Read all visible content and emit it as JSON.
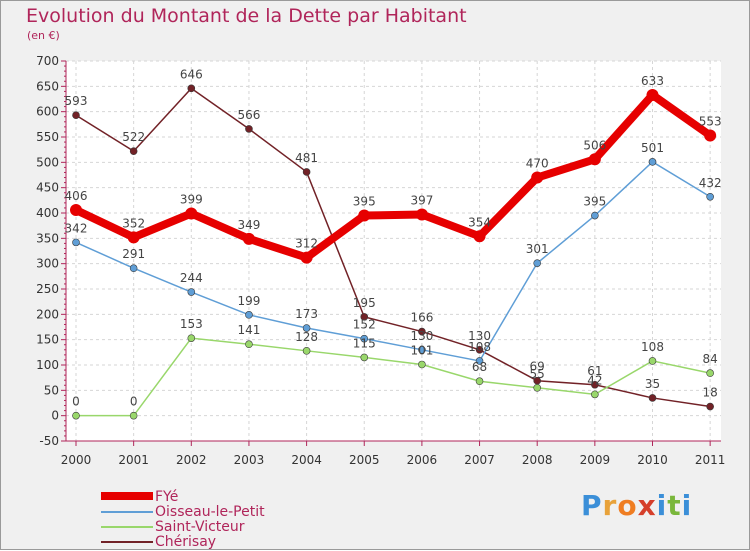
{
  "header": {
    "title": "Evolution du Montant de la Dette par Habitant",
    "unit": "(en €)"
  },
  "brand": {
    "letters": [
      "P",
      "r",
      "o",
      "x",
      "i",
      "t",
      "i"
    ],
    "colors": [
      "#3b8fd8",
      "#e8a23a",
      "#ef7d22",
      "#d53f2b",
      "#3b8fd8",
      "#7ab73b",
      "#3b8fd8"
    ]
  },
  "chart_data": {
    "type": "line",
    "title": "Evolution du Montant de la Dette par Habitant",
    "ylabel": "(en €)",
    "xlabel": "",
    "x": [
      "2000",
      "2001",
      "2002",
      "2003",
      "2004",
      "2005",
      "2006",
      "2007",
      "2008",
      "2009",
      "2010",
      "2011"
    ],
    "ylim": [
      -50,
      700
    ],
    "yticks": [
      -50,
      0,
      50,
      100,
      150,
      200,
      250,
      300,
      350,
      400,
      450,
      500,
      550,
      600,
      650,
      700
    ],
    "grid": true,
    "legend_position": "bottom-left",
    "series": [
      {
        "name": "FYé",
        "color": "#e60000",
        "values": [
          406,
          352,
          399,
          349,
          312,
          395,
          397,
          354,
          470,
          506,
          633,
          553
        ],
        "labels": [
          "406",
          "352",
          "399",
          "349",
          "312",
          "395",
          "397",
          "354",
          "470",
          "506",
          "633",
          "553"
        ],
        "emphasis": true
      },
      {
        "name": "Oisseau-le-Petit",
        "color": "#5f9ed6",
        "values": [
          342,
          291,
          244,
          199,
          173,
          152,
          130,
          108,
          301,
          395,
          501,
          432
        ],
        "labels": [
          "342",
          "291",
          "244",
          "199",
          "173",
          "152",
          "130",
          "108",
          "301",
          "395",
          "501",
          "432"
        ]
      },
      {
        "name": "Saint-Victeur",
        "color": "#99d76b",
        "values": [
          0,
          0,
          153,
          141,
          128,
          115,
          101,
          68,
          55,
          42,
          108,
          84
        ],
        "labels": [
          "0",
          "0",
          "153",
          "141",
          "128",
          "115",
          "101",
          "68",
          "55",
          "42",
          "108",
          "84"
        ]
      },
      {
        "name": "Chérisay",
        "color": "#722227",
        "values": [
          593,
          522,
          646,
          566,
          481,
          195,
          166,
          130,
          69,
          61,
          35,
          18
        ],
        "labels": [
          "593",
          "522",
          "646",
          "566",
          "481",
          "195",
          "166",
          "130",
          "69",
          "61",
          "35",
          "18"
        ]
      }
    ]
  }
}
